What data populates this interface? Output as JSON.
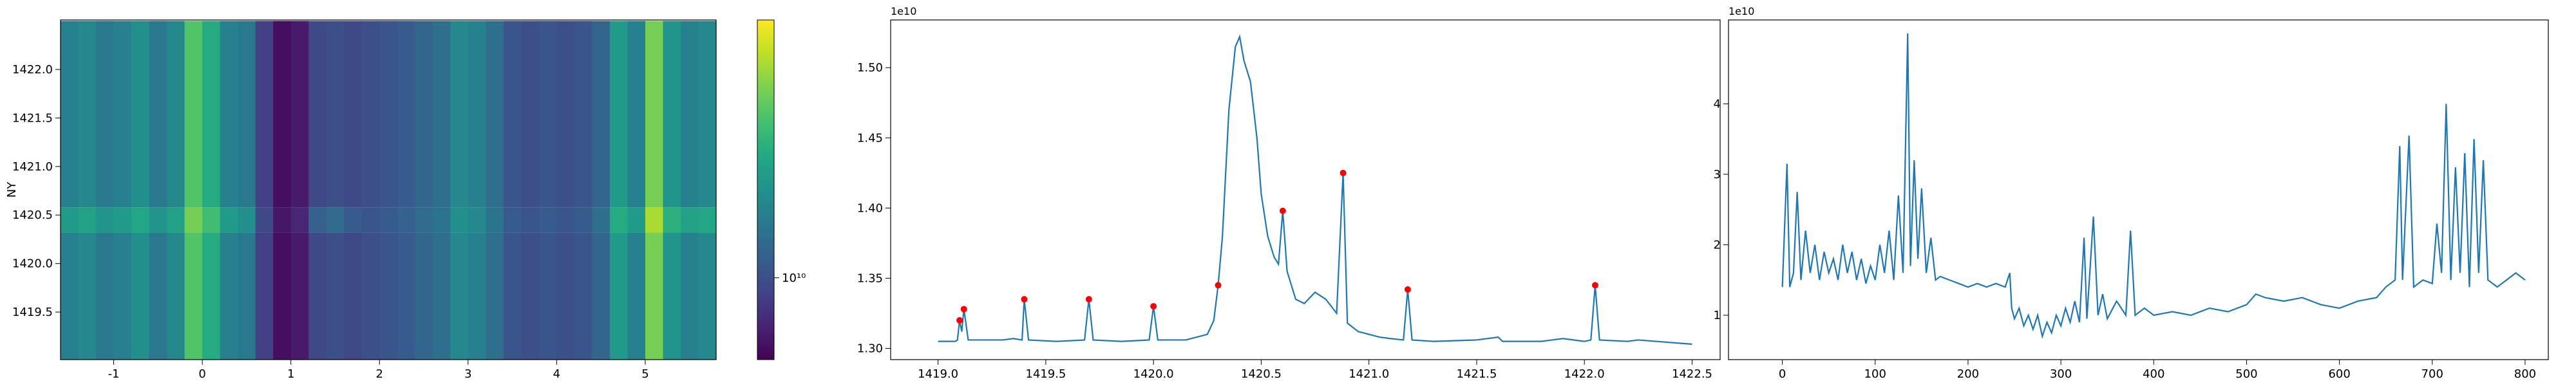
{
  "chart_data": [
    {
      "type": "heatmap",
      "colormap": "viridis",
      "ylabel": "NY",
      "x_edges": [
        -1.6,
        -1.4,
        -1.2,
        -1.0,
        -0.8,
        -0.6,
        -0.4,
        -0.2,
        0.0,
        0.2,
        0.4,
        0.6,
        0.8,
        1.0,
        1.2,
        1.4,
        1.6,
        1.8,
        2.0,
        2.2,
        2.4,
        2.6,
        2.8,
        3.0,
        3.2,
        3.4,
        3.6,
        3.8,
        4.0,
        4.2,
        4.4,
        4.6,
        4.8,
        5.0,
        5.2,
        5.4,
        5.6,
        5.8
      ],
      "y_edges": [
        1419.0,
        1420.32,
        1420.58,
        1422.5
      ],
      "z": [
        [
          15000000000.0,
          16000000000.0,
          14000000000.0,
          15000000000.0,
          17000000000.0,
          14000000000.0,
          16000000000.0,
          28000000000.0,
          22000000000.0,
          15000000000.0,
          14000000000.0,
          9000000000.0,
          6500000000.0,
          7000000000.0,
          9500000000.0,
          10000000000.0,
          9500000000.0,
          10000000000.0,
          10500000000.0,
          11000000000.0,
          12000000000.0,
          13000000000.0,
          16000000000.0,
          15000000000.0,
          13000000000.0,
          10500000000.0,
          10000000000.0,
          10500000000.0,
          10000000000.0,
          10500000000.0,
          12000000000.0,
          19000000000.0,
          15000000000.0,
          32000000000.0,
          18000000000.0,
          15000000000.0,
          16000000000.0
        ],
        [
          19000000000.0,
          20000000000.0,
          18000000000.0,
          19000000000.0,
          21000000000.0,
          18000000000.0,
          20000000000.0,
          32000000000.0,
          26000000000.0,
          19000000000.0,
          17000000000.0,
          9500000000.0,
          6800000000.0,
          7500000000.0,
          11500000000.0,
          12500000000.0,
          11000000000.0,
          10500000000.0,
          11000000000.0,
          11500000000.0,
          12500000000.0,
          13500000000.0,
          17000000000.0,
          16000000000.0,
          13500000000.0,
          11000000000.0,
          10500000000.0,
          11000000000.0,
          10500000000.0,
          11000000000.0,
          13000000000.0,
          22000000000.0,
          19000000000.0,
          38000000000.0,
          23000000000.0,
          20000000000.0,
          21000000000.0
        ],
        [
          15000000000.0,
          16000000000.0,
          14000000000.0,
          15000000000.0,
          17000000000.0,
          14000000000.0,
          16000000000.0,
          28000000000.0,
          22000000000.0,
          15000000000.0,
          14000000000.0,
          9000000000.0,
          6500000000.0,
          7000000000.0,
          9500000000.0,
          10000000000.0,
          9500000000.0,
          10000000000.0,
          10500000000.0,
          11000000000.0,
          12000000000.0,
          13000000000.0,
          16000000000.0,
          15000000000.0,
          13000000000.0,
          10500000000.0,
          10000000000.0,
          10500000000.0,
          10000000000.0,
          10500000000.0,
          12000000000.0,
          19000000000.0,
          15000000000.0,
          32000000000.0,
          18000000000.0,
          15000000000.0,
          16000000000.0
        ]
      ],
      "xlim": [
        -1.6,
        5.8
      ],
      "xticks": [
        -1,
        0,
        1,
        2,
        3,
        4,
        5
      ],
      "ylim": [
        1419.01,
        1422.51
      ],
      "yticks": [
        {
          "value": 1419.5,
          "label": "1419.5"
        },
        {
          "value": 1420.0,
          "label": "1420.0"
        },
        {
          "value": 1420.5,
          "label": "1420.5"
        },
        {
          "value": 1421.0,
          "label": "1421.0"
        },
        {
          "value": 1421.5,
          "label": "1421.5"
        },
        {
          "value": 1422.0,
          "label": "1422.0"
        }
      ],
      "colorbar": {
        "log_scale": true,
        "clim": [
          6000000000.0,
          50000000000.0
        ],
        "ticks": [
          {
            "value": 10000000000.0,
            "label": "10¹⁰"
          }
        ]
      }
    },
    {
      "type": "line",
      "offset_text": "1e10",
      "color": "#1f77b4",
      "x": [
        1419.0,
        1419.08,
        1419.09,
        1419.1,
        1419.11,
        1419.12,
        1419.14,
        1419.3,
        1419.35,
        1419.39,
        1419.4,
        1419.42,
        1419.55,
        1419.68,
        1419.7,
        1419.72,
        1419.85,
        1419.98,
        1420.0,
        1420.02,
        1420.15,
        1420.25,
        1420.28,
        1420.3,
        1420.32,
        1420.35,
        1420.38,
        1420.4,
        1420.42,
        1420.45,
        1420.48,
        1420.5,
        1420.53,
        1420.56,
        1420.58,
        1420.6,
        1420.62,
        1420.66,
        1420.7,
        1420.75,
        1420.8,
        1420.85,
        1420.88,
        1420.9,
        1420.95,
        1421.05,
        1421.1,
        1421.16,
        1421.18,
        1421.2,
        1421.3,
        1421.5,
        1421.6,
        1421.62,
        1421.8,
        1421.9,
        1422.0,
        1422.03,
        1422.05,
        1422.07,
        1422.2,
        1422.25,
        1422.5
      ],
      "values": [
        1.305,
        1.305,
        1.306,
        1.32,
        1.312,
        1.328,
        1.306,
        1.306,
        1.307,
        1.306,
        1.335,
        1.306,
        1.305,
        1.306,
        1.335,
        1.306,
        1.305,
        1.306,
        1.33,
        1.306,
        1.306,
        1.31,
        1.32,
        1.345,
        1.38,
        1.47,
        1.515,
        1.522,
        1.505,
        1.49,
        1.45,
        1.41,
        1.38,
        1.365,
        1.36,
        1.398,
        1.355,
        1.335,
        1.332,
        1.34,
        1.335,
        1.325,
        1.425,
        1.318,
        1.312,
        1.308,
        1.307,
        1.306,
        1.342,
        1.306,
        1.305,
        1.306,
        1.308,
        1.305,
        1.305,
        1.307,
        1.305,
        1.306,
        1.345,
        1.306,
        1.305,
        1.306,
        1.303
      ],
      "peaks": {
        "color": "#ff0000",
        "x": [
          1419.1,
          1419.12,
          1419.4,
          1419.7,
          1420.0,
          1420.3,
          1420.6,
          1420.88,
          1421.18,
          1422.05
        ],
        "values": [
          1.32,
          1.328,
          1.335,
          1.335,
          1.33,
          1.345,
          1.398,
          1.425,
          1.342,
          1.345
        ]
      },
      "xlim": [
        1418.78,
        1422.63
      ],
      "xticks": [
        {
          "value": 1419.0,
          "label": "1419.0"
        },
        {
          "value": 1419.5,
          "label": "1419.5"
        },
        {
          "value": 1420.0,
          "label": "1420.0"
        },
        {
          "value": 1420.5,
          "label": "1420.5"
        },
        {
          "value": 1421.0,
          "label": "1421.0"
        },
        {
          "value": 1421.5,
          "label": "1421.5"
        },
        {
          "value": 1422.0,
          "label": "1422.0"
        },
        {
          "value": 1422.5,
          "label": "1422.5"
        }
      ],
      "ylim": [
        1.292,
        1.534
      ],
      "yticks": [
        {
          "value": 1.3,
          "label": "1.30"
        },
        {
          "value": 1.35,
          "label": "1.35"
        },
        {
          "value": 1.4,
          "label": "1.40"
        },
        {
          "value": 1.45,
          "label": "1.45"
        },
        {
          "value": 1.5,
          "label": "1.50"
        }
      ]
    },
    {
      "type": "line",
      "offset_text": "1e10",
      "color": "#1f77b4",
      "x": [
        0,
        5,
        8,
        12,
        16,
        20,
        25,
        30,
        35,
        40,
        45,
        50,
        55,
        60,
        65,
        70,
        75,
        80,
        85,
        90,
        95,
        100,
        105,
        110,
        115,
        120,
        125,
        130,
        135,
        138,
        142,
        146,
        150,
        155,
        160,
        165,
        170,
        180,
        190,
        200,
        210,
        220,
        230,
        240,
        245,
        247,
        250,
        255,
        260,
        265,
        270,
        275,
        280,
        285,
        290,
        295,
        300,
        305,
        310,
        315,
        320,
        325,
        328,
        335,
        340,
        345,
        350,
        360,
        370,
        375,
        380,
        390,
        400,
        420,
        440,
        460,
        480,
        500,
        510,
        520,
        540,
        560,
        580,
        600,
        620,
        640,
        650,
        660,
        665,
        668,
        675,
        680,
        690,
        700,
        705,
        710,
        715,
        720,
        725,
        730,
        735,
        740,
        745,
        750,
        755,
        760,
        770,
        780,
        790,
        800
      ],
      "values": [
        1.4,
        3.15,
        1.4,
        1.6,
        2.75,
        1.5,
        2.2,
        1.6,
        2.0,
        1.5,
        1.9,
        1.6,
        1.8,
        1.5,
        2.0,
        1.6,
        1.9,
        1.5,
        1.8,
        1.45,
        1.7,
        1.5,
        2.0,
        1.6,
        2.2,
        1.5,
        2.7,
        1.6,
        5.0,
        1.7,
        3.2,
        1.8,
        2.8,
        1.6,
        2.1,
        1.5,
        1.55,
        1.5,
        1.45,
        1.4,
        1.45,
        1.4,
        1.45,
        1.4,
        1.6,
        1.1,
        0.95,
        1.1,
        0.85,
        1.0,
        0.8,
        1.0,
        0.7,
        0.9,
        0.75,
        1.0,
        0.85,
        1.1,
        0.9,
        1.2,
        0.9,
        2.1,
        0.95,
        2.4,
        1.0,
        1.3,
        0.95,
        1.2,
        1.0,
        2.2,
        1.0,
        1.1,
        1.0,
        1.05,
        1.0,
        1.1,
        1.05,
        1.15,
        1.3,
        1.25,
        1.2,
        1.25,
        1.15,
        1.1,
        1.2,
        1.25,
        1.4,
        1.5,
        3.4,
        1.5,
        3.55,
        1.4,
        1.5,
        1.45,
        2.3,
        1.6,
        4.0,
        1.5,
        3.1,
        1.6,
        3.3,
        1.4,
        3.5,
        1.6,
        3.2,
        1.5,
        1.4,
        1.5,
        1.6,
        1.5
      ],
      "xlim": [
        -58,
        825
      ],
      "xticks": [
        0,
        100,
        200,
        300,
        400,
        500,
        600,
        700,
        800
      ],
      "ylim": [
        0.37,
        5.19
      ],
      "yticks": [
        1,
        2,
        3,
        4
      ]
    }
  ]
}
